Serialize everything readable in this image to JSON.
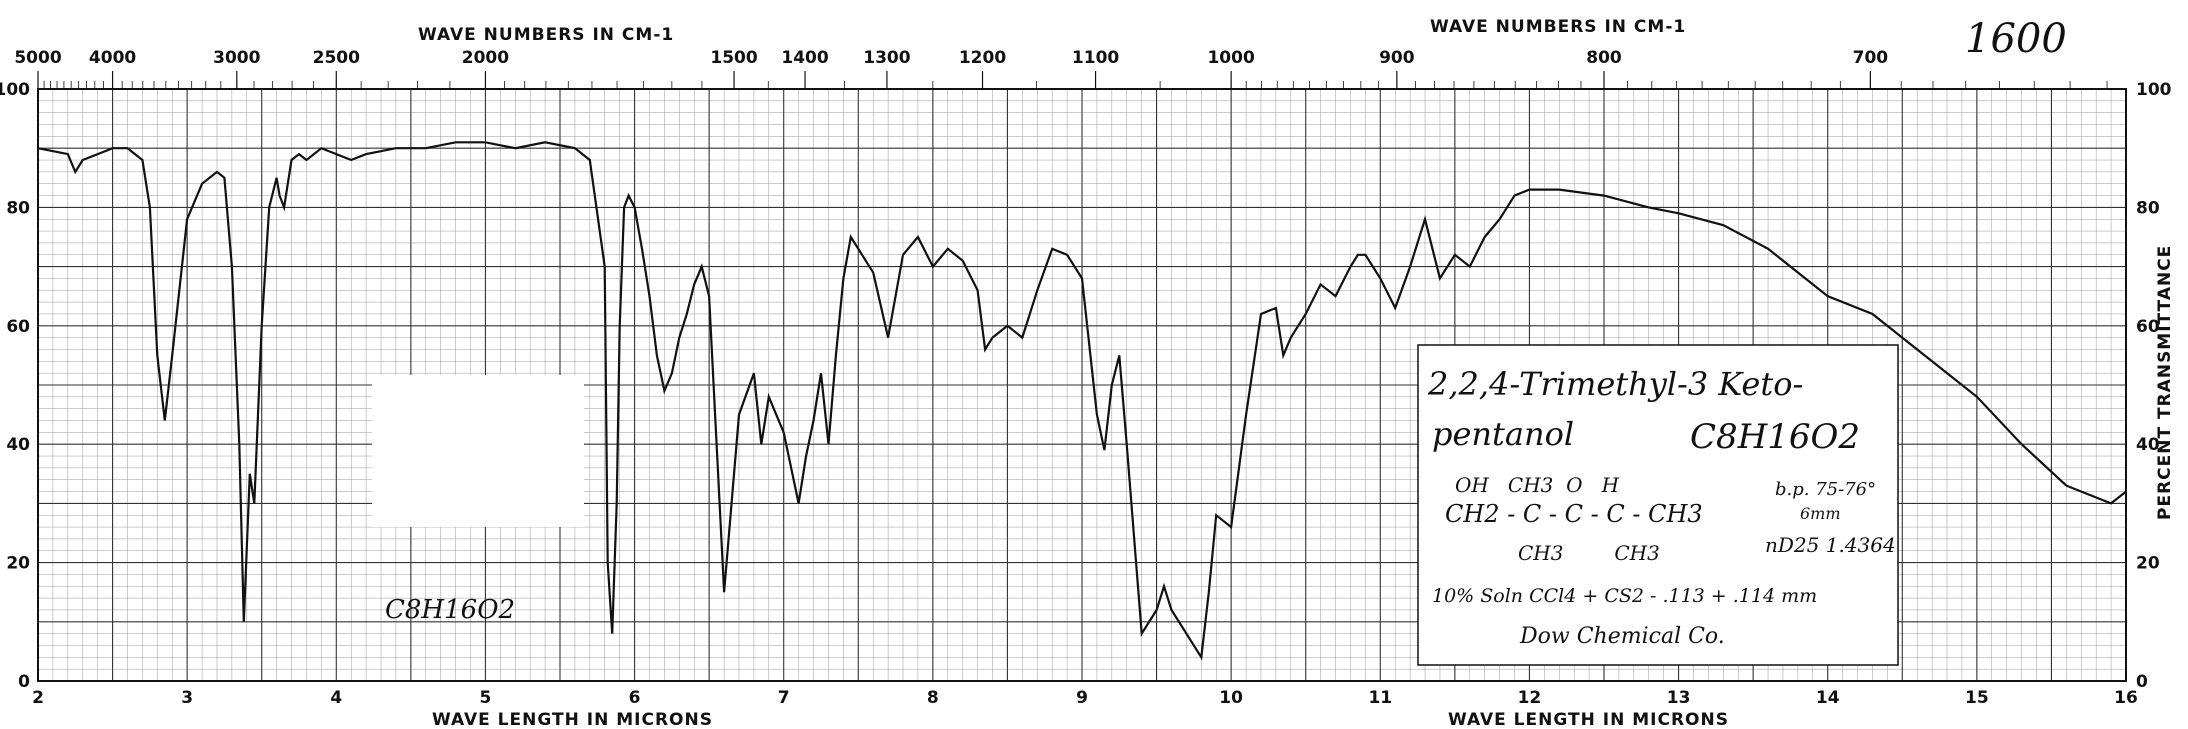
{
  "chart_data": {
    "type": "line",
    "title_top_left": "WAVE NUMBERS IN CM-1",
    "title_top_right": "WAVE NUMBERS IN CM-1",
    "xlabel_left": "WAVE LENGTH IN MICRONS",
    "xlabel_right": "WAVE LENGTH IN MICRONS",
    "ylabel": "PERCENT TRANSMITTANCE",
    "xlim": [
      2,
      16
    ],
    "ylim": [
      0,
      100
    ],
    "x_ticks": [
      "2",
      "3",
      "4",
      "5",
      "6",
      "7",
      "8",
      "9",
      "10",
      "11",
      "12",
      "13",
      "14",
      "15",
      "16"
    ],
    "y_ticks_left": [
      "0",
      "20",
      "40",
      "60",
      "80",
      "100"
    ],
    "y_ticks_right": [
      "0",
      "20",
      "40",
      "60",
      "80",
      "100"
    ],
    "wavenumber_ticks": [
      {
        "label": "5000",
        "micron": 2.0
      },
      {
        "label": "4000",
        "micron": 2.5
      },
      {
        "label": "3000",
        "micron": 3.333
      },
      {
        "label": "2500",
        "micron": 4.0
      },
      {
        "label": "2000",
        "micron": 5.0
      },
      {
        "label": "1500",
        "micron": 6.667
      },
      {
        "label": "1400",
        "micron": 7.143
      },
      {
        "label": "1300",
        "micron": 7.692
      },
      {
        "label": "1200",
        "micron": 8.333
      },
      {
        "label": "1100",
        "micron": 9.091
      },
      {
        "label": "1000",
        "micron": 10.0
      },
      {
        "label": "900",
        "micron": 11.111
      },
      {
        "label": "800",
        "micron": 12.5
      },
      {
        "label": "700",
        "micron": 14.286
      }
    ],
    "grid": true,
    "series": [
      {
        "x": [
          2.0,
          2.2,
          2.25,
          2.3,
          2.4,
          2.5,
          2.6,
          2.7,
          2.75,
          2.8,
          2.85,
          2.9,
          3.0,
          3.1,
          3.2,
          3.25,
          3.3,
          3.35,
          3.38,
          3.42,
          3.45,
          3.5,
          3.55,
          3.6,
          3.62,
          3.65,
          3.7,
          3.75,
          3.8,
          3.9,
          4.0,
          4.1,
          4.2,
          4.4,
          4.6,
          4.8,
          5.0,
          5.2,
          5.4,
          5.6,
          5.7,
          5.8,
          5.82,
          5.85,
          5.88,
          5.9,
          5.93,
          5.96,
          6.0,
          6.05,
          6.1,
          6.15,
          6.2,
          6.25,
          6.3,
          6.35,
          6.4,
          6.45,
          6.5,
          6.6,
          6.7,
          6.8,
          6.85,
          6.9,
          7.0,
          7.1,
          7.15,
          7.2,
          7.25,
          7.3,
          7.35,
          7.4,
          7.45,
          7.5,
          7.55,
          7.6,
          7.7,
          7.8,
          7.9,
          8.0,
          8.1,
          8.2,
          8.3,
          8.35,
          8.4,
          8.5,
          8.6,
          8.7,
          8.8,
          8.9,
          9.0,
          9.1,
          9.15,
          9.2,
          9.25,
          9.3,
          9.4,
          9.5,
          9.55,
          9.6,
          9.7,
          9.8,
          9.85,
          9.9,
          10.0,
          10.1,
          10.2,
          10.3,
          10.35,
          10.4,
          10.5,
          10.6,
          10.7,
          10.8,
          10.85,
          10.9,
          11.0,
          11.1,
          11.2,
          11.3,
          11.4,
          11.5,
          11.6,
          11.7,
          11.8,
          11.9,
          12.0,
          12.2,
          12.5,
          12.8,
          13.0,
          13.3,
          13.6,
          14.0,
          14.3,
          14.6,
          15.0,
          15.3,
          15.6,
          15.8,
          15.9,
          16.0
        ],
        "y": [
          90,
          89,
          86,
          88,
          89,
          90,
          90,
          88,
          80,
          55,
          44,
          55,
          78,
          84,
          86,
          85,
          70,
          40,
          10,
          35,
          30,
          60,
          80,
          85,
          82,
          80,
          88,
          89,
          88,
          90,
          89,
          88,
          89,
          90,
          90,
          91,
          91,
          90,
          91,
          90,
          88,
          70,
          20,
          8,
          30,
          60,
          80,
          82,
          80,
          73,
          65,
          55,
          49,
          52,
          58,
          62,
          67,
          70,
          65,
          15,
          45,
          52,
          40,
          48,
          42,
          30,
          38,
          44,
          52,
          40,
          55,
          68,
          75,
          73,
          71,
          69,
          58,
          72,
          75,
          70,
          73,
          71,
          66,
          56,
          58,
          60,
          58,
          66,
          73,
          72,
          68,
          45,
          39,
          50,
          55,
          40,
          8,
          12,
          16,
          12,
          8,
          4,
          15,
          28,
          26,
          45,
          62,
          63,
          55,
          58,
          62,
          67,
          65,
          70,
          72,
          72,
          68,
          63,
          70,
          78,
          68,
          72,
          70,
          75,
          78,
          82,
          83,
          83,
          82,
          80,
          79,
          77,
          73,
          65,
          62,
          56,
          48,
          40,
          33,
          31,
          30,
          32
        ]
      }
    ]
  },
  "annotations": {
    "chart_number": "1600",
    "pencil_note": "C8H16O2",
    "name_line1": "2,2,4-Trimethyl-3 Keto-",
    "name_line2": "pentanol",
    "formula": "C8H16O2",
    "structure_top": "OH   CH3  O   H",
    "structure_mid": "CH2 - C - C - C - CH3",
    "structure_bottom": "CH3        CH3",
    "bp": "b.p. 75-76°",
    "bp_pressure": "6mm",
    "refractive_index": "nD25 1.4364",
    "solution": "10% Soln CCl4 + CS2 - .113 + .114 mm",
    "source": "Dow Chemical Co."
  }
}
